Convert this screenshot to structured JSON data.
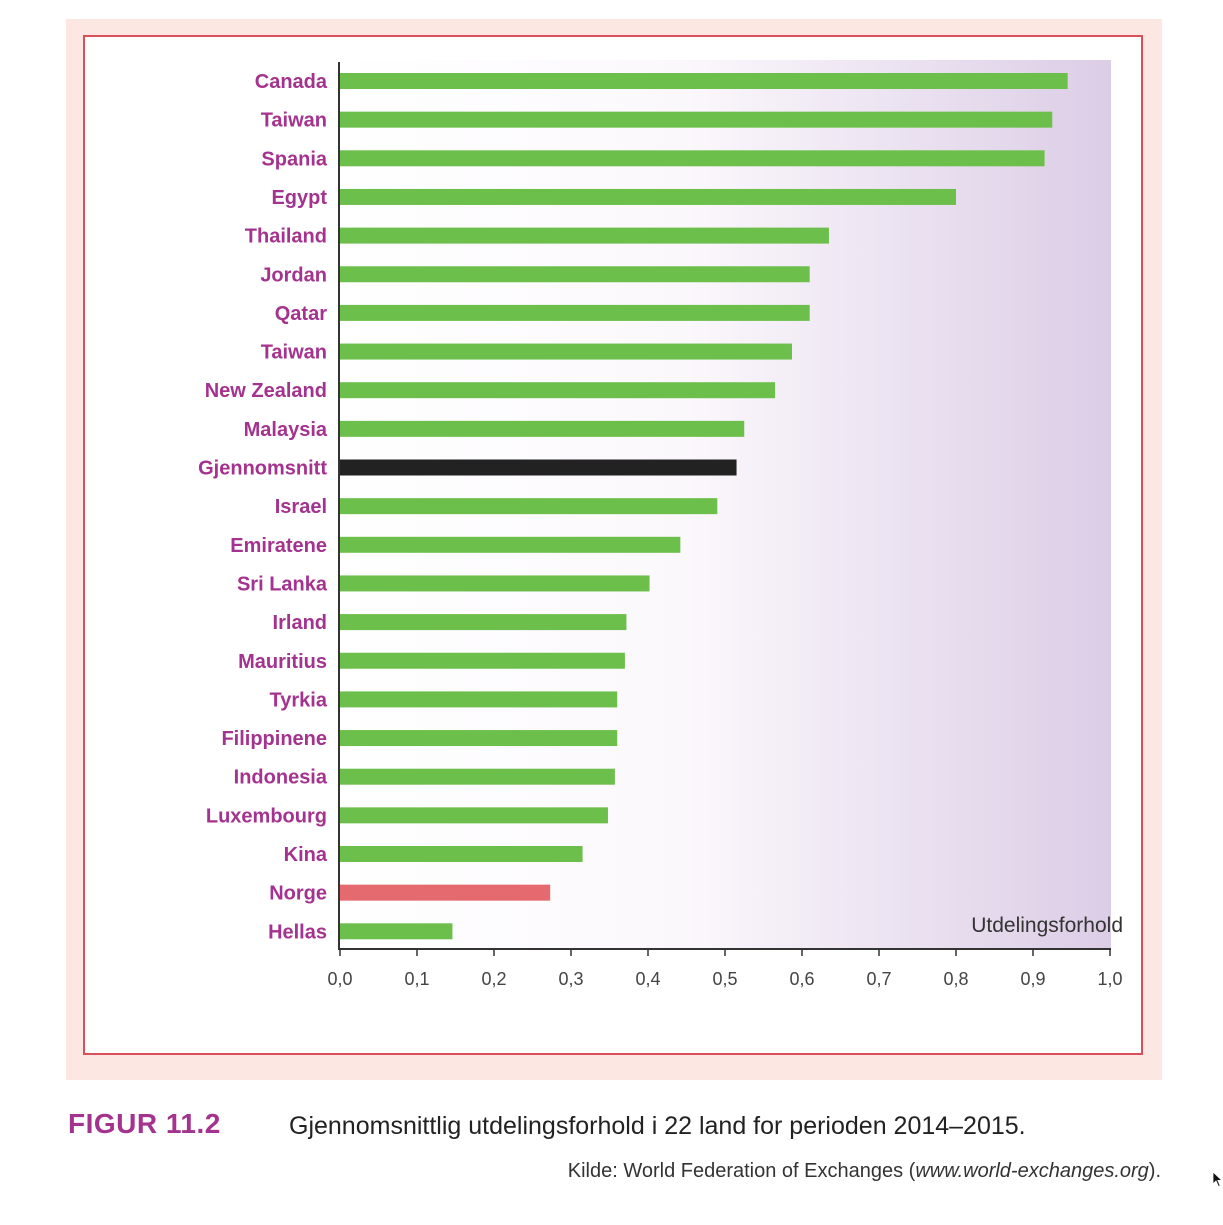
{
  "chart_data": {
    "type": "bar",
    "orientation": "horizontal",
    "categories": [
      "Canada",
      "Taiwan",
      "Spania",
      "Egypt",
      "Thailand",
      "Jordan",
      "Qatar",
      "Taiwan",
      "New Zealand",
      "Malaysia",
      "Gjennomsnitt",
      "Israel",
      "Emiratene",
      "Sri Lanka",
      "Irland",
      "Mauritius",
      "Tyrkia",
      "Filippinene",
      "Indonesia",
      "Luxembourg",
      "Kina",
      "Norge",
      "Hellas"
    ],
    "values": [
      0.945,
      0.925,
      0.915,
      0.8,
      0.635,
      0.61,
      0.61,
      0.587,
      0.565,
      0.525,
      0.515,
      0.49,
      0.442,
      0.402,
      0.372,
      0.37,
      0.36,
      0.36,
      0.357,
      0.348,
      0.315,
      0.273,
      0.146
    ],
    "xlabel": "Utdelingsforhold",
    "xlim": [
      0,
      1.0
    ],
    "xticks": [
      "0,0",
      "0,1",
      "0,2",
      "0,3",
      "0,4",
      "0,5",
      "0,6",
      "0,7",
      "0,8",
      "0,9",
      "1,0"
    ],
    "grid": false,
    "colors": {
      "default": "#6dbf4b",
      "Gjennomsnitt": "#222222",
      "Norge": "#e56a6f",
      "label": "#a4328f",
      "background_gradient_end": "#dccde6"
    }
  },
  "caption": {
    "label": "FIGUR 11.2",
    "text": "Gjennomsnittlig utdelingsforhold i 22 land for perioden 2014–2015.",
    "source_prefix": "Kilde: World Federation of Exchanges (",
    "source_url": "www.world-exchanges.org",
    "source_suffix": ")."
  }
}
